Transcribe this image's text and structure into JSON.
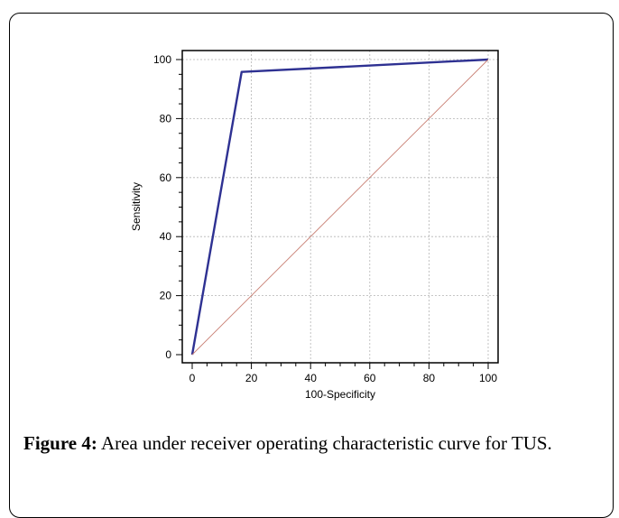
{
  "chart_data": {
    "type": "line",
    "title": "",
    "xlabel": "100-Specificity",
    "ylabel": "Sensitivity",
    "xlim": [
      0,
      100
    ],
    "ylim": [
      0,
      100
    ],
    "x_ticks": [
      0,
      20,
      40,
      60,
      80,
      100
    ],
    "y_ticks": [
      0,
      20,
      40,
      60,
      80,
      100
    ],
    "grid": true,
    "series": [
      {
        "x": [
          0,
          16.7,
          100
        ],
        "y": [
          0,
          95.8,
          100
        ],
        "color": "#2e3192"
      },
      {
        "x": [
          0,
          100
        ],
        "y": [
          0,
          100
        ],
        "color": "#c87e72"
      }
    ]
  },
  "caption": {
    "label": "Figure 4:",
    "text": "Area under receiver operating characteristic curve for TUS."
  }
}
